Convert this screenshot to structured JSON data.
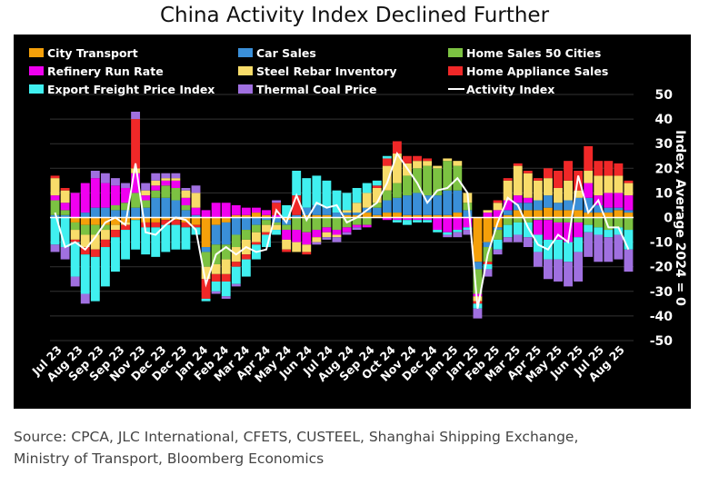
{
  "title": "China Activity Index Declined Further",
  "source_lines": [
    "Source: CPCA, JLC International, CFETS, CUSTEEL, Shanghai Shipping Exchange,",
    "Ministry of Transport, Bloomberg Economics"
  ],
  "chart_data": {
    "type": "bar",
    "stacked": true,
    "title": "China Activity Index Declined Further",
    "ylabel": "Index, Average 2024 = 0",
    "ylim": [
      -50,
      50
    ],
    "yticks": [
      50,
      40,
      30,
      20,
      10,
      0,
      -10,
      -20,
      -30,
      -40,
      -50
    ],
    "grid": true,
    "legend_placement": "top",
    "x_tick_labels": [
      "Jul 23",
      "Aug 23",
      "Sep 23",
      "Sep 23",
      "Nov 23",
      "Dec 23",
      "Dec 23",
      "Jan 24",
      "Feb 24",
      "Mar 24",
      "Apr 24",
      "May 24",
      "Jun 24",
      "Jul 24",
      "Aug 24",
      "Sep 24",
      "Oct 24",
      "Nov 24",
      "Dec 24",
      "Jan 25",
      "Jan 25",
      "Feb 25",
      "Mar 25",
      "Apr 25",
      "May 25",
      "Jun 25",
      "Jul 25",
      "Aug 25"
    ],
    "series": [
      {
        "name": "City Transport",
        "color": "#f5a00a",
        "values": [
          0,
          0,
          -2,
          -3,
          -3,
          -3,
          -3,
          -2,
          -1,
          -2,
          -2,
          -1,
          -1,
          -2,
          -3,
          -12,
          -3,
          -2,
          1,
          1,
          2,
          1,
          0,
          -1,
          0,
          1,
          1,
          1,
          0,
          1,
          1,
          2,
          1,
          2,
          2,
          1,
          1,
          1,
          1,
          1,
          2,
          0,
          -18,
          -10,
          -4,
          1,
          3,
          3,
          3,
          4,
          3,
          3,
          3,
          2,
          2,
          2,
          3,
          2
        ]
      },
      {
        "name": "Car Sales",
        "color": "#3a8fd8",
        "values": [
          1,
          1,
          0,
          2,
          4,
          4,
          3,
          3,
          4,
          4,
          8,
          8,
          7,
          3,
          1,
          -2,
          -8,
          -9,
          -7,
          -5,
          -3,
          -1,
          -2,
          -2,
          1,
          3,
          4,
          3,
          2,
          1,
          1,
          2,
          3,
          5,
          6,
          8,
          9,
          8,
          8,
          10,
          9,
          3,
          -3,
          -2,
          -1,
          2,
          3,
          3,
          4,
          5,
          3,
          4,
          5,
          6,
          3,
          2,
          1,
          1
        ]
      },
      {
        "name": "Home Sales 50 Cities",
        "color": "#7cc242",
        "values": [
          6,
          2,
          -3,
          -4,
          -4,
          -2,
          2,
          3,
          6,
          3,
          3,
          5,
          5,
          2,
          0,
          -6,
          -8,
          -6,
          -5,
          -4,
          -3,
          -2,
          -1,
          -2,
          -5,
          -6,
          -5,
          -4,
          -5,
          -4,
          -3,
          -3,
          2,
          4,
          6,
          8,
          10,
          12,
          11,
          12,
          10,
          3,
          -10,
          -6,
          -4,
          -3,
          -2,
          -2,
          -1,
          -1,
          -2,
          -2,
          -2,
          -3,
          -4,
          -5,
          -4,
          -5
        ]
      },
      {
        "name": "Refinery Run Rate",
        "color": "#f000f0",
        "values": [
          2,
          3,
          10,
          12,
          12,
          10,
          8,
          6,
          8,
          2,
          2,
          2,
          3,
          3,
          3,
          3,
          6,
          6,
          4,
          3,
          2,
          2,
          1,
          -4,
          -5,
          -5,
          -3,
          -2,
          -2,
          -2,
          -1,
          -1,
          0,
          -1,
          -1,
          -1,
          -1,
          -1,
          -5,
          -6,
          -5,
          -4,
          -1,
          2,
          3,
          4,
          3,
          2,
          -6,
          -8,
          -7,
          -8,
          -6,
          6,
          4,
          6,
          6,
          6
        ]
      },
      {
        "name": "Steel Rebar Inventory",
        "color": "#f8dc6a",
        "values": [
          7,
          5,
          -4,
          -5,
          -6,
          -4,
          -2,
          -1,
          2,
          2,
          2,
          1,
          1,
          3,
          6,
          -5,
          -4,
          -6,
          -6,
          -6,
          -4,
          -3,
          -2,
          -4,
          -4,
          -3,
          -2,
          -2,
          -1,
          1,
          4,
          6,
          6,
          10,
          12,
          5,
          3,
          2,
          1,
          1,
          2,
          4,
          -2,
          1,
          3,
          8,
          12,
          10,
          8,
          7,
          6,
          8,
          3,
          5,
          8,
          7,
          7,
          5
        ]
      },
      {
        "name": "Home Appliance Sales",
        "color": "#f02828",
        "values": [
          1,
          1,
          -1,
          -3,
          -3,
          -3,
          -3,
          -2,
          20,
          -2,
          -2,
          -2,
          -2,
          -2,
          -1,
          -8,
          -3,
          -3,
          -2,
          -2,
          -1,
          -1,
          5,
          -1,
          8,
          -1,
          0,
          0,
          0,
          0,
          0,
          0,
          1,
          3,
          5,
          3,
          2,
          1,
          0,
          0,
          0,
          0,
          -1,
          -1,
          1,
          1,
          1,
          1,
          1,
          4,
          7,
          8,
          8,
          10,
          6,
          6,
          5,
          1
        ]
      },
      {
        "name": "Export Freight Price Index",
        "color": "#40f0f0",
        "values": [
          -11,
          -12,
          -14,
          -16,
          -18,
          -16,
          -14,
          -12,
          -12,
          -11,
          -12,
          -11,
          -10,
          -9,
          -3,
          -1,
          -4,
          -6,
          -7,
          -7,
          -6,
          -5,
          -2,
          5,
          10,
          12,
          12,
          11,
          9,
          7,
          6,
          4,
          2,
          1,
          -1,
          -2,
          -1,
          -1,
          -1,
          -1,
          -1,
          -1,
          -2,
          -2,
          -4,
          -5,
          -5,
          -6,
          -7,
          -8,
          -8,
          -8,
          -6,
          -3,
          -3,
          -3,
          -3,
          -8
        ]
      },
      {
        "name": "Thermal Coal Price",
        "color": "#a070e0",
        "values": [
          -3,
          -5,
          -4,
          -4,
          3,
          4,
          3,
          2,
          3,
          3,
          3,
          2,
          2,
          1,
          3,
          0,
          -1,
          -1,
          -1,
          0,
          0,
          0,
          1,
          0,
          0,
          0,
          -1,
          -1,
          -2,
          -1,
          -1,
          0,
          0,
          0,
          0,
          0,
          0,
          0,
          0,
          -1,
          -2,
          -2,
          -4,
          -3,
          -2,
          -2,
          -3,
          -4,
          -6,
          -8,
          -9,
          -10,
          -12,
          -10,
          -11,
          -10,
          -10,
          -9
        ]
      }
    ],
    "line": {
      "name": "Activity Index",
      "color": "#ffffff",
      "values": [
        2,
        -12,
        -10,
        -13,
        -8,
        -2,
        0,
        -3,
        22,
        -6,
        -7,
        -3,
        0,
        -1,
        -5,
        -27,
        -15,
        -12,
        -15,
        -12,
        -14,
        -13,
        3,
        -2,
        9,
        -1,
        6,
        4,
        5,
        -2,
        0,
        3,
        6,
        14,
        26,
        20,
        14,
        6,
        11,
        12,
        16,
        10,
        -37,
        -15,
        -2,
        8,
        5,
        -4,
        -11,
        -13,
        -7,
        -10,
        17,
        2,
        7,
        -4,
        -4,
        -13
      ]
    }
  }
}
